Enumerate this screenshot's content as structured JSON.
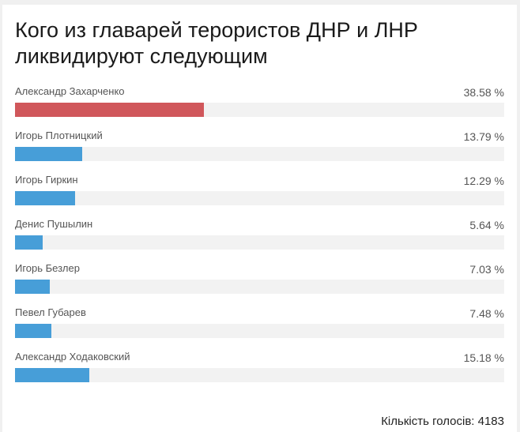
{
  "poll": {
    "title": "Кого из главарей терористов ДНР и ЛНР ликвидируют следующим",
    "options": [
      {
        "label": "Александр Захарченко",
        "percent": 38.58,
        "percent_text": "38.58 %",
        "color": "#d0575b"
      },
      {
        "label": "Игорь Плотницкий",
        "percent": 13.79,
        "percent_text": "13.79 %",
        "color": "#479ed8"
      },
      {
        "label": "Игорь Гиркин",
        "percent": 12.29,
        "percent_text": "12.29 %",
        "color": "#479ed8"
      },
      {
        "label": "Денис Пушылин",
        "percent": 5.64,
        "percent_text": "5.64 %",
        "color": "#479ed8"
      },
      {
        "label": "Игорь Безлер",
        "percent": 7.03,
        "percent_text": "7.03 %",
        "color": "#479ed8"
      },
      {
        "label": "Певел Губарев",
        "percent": 7.48,
        "percent_text": "7.48 %",
        "color": "#479ed8"
      },
      {
        "label": "Александр Ходаковский",
        "percent": 15.18,
        "percent_text": "15.18 %",
        "color": "#479ed8"
      }
    ],
    "total_votes": "Кількість голосів: 4183"
  }
}
